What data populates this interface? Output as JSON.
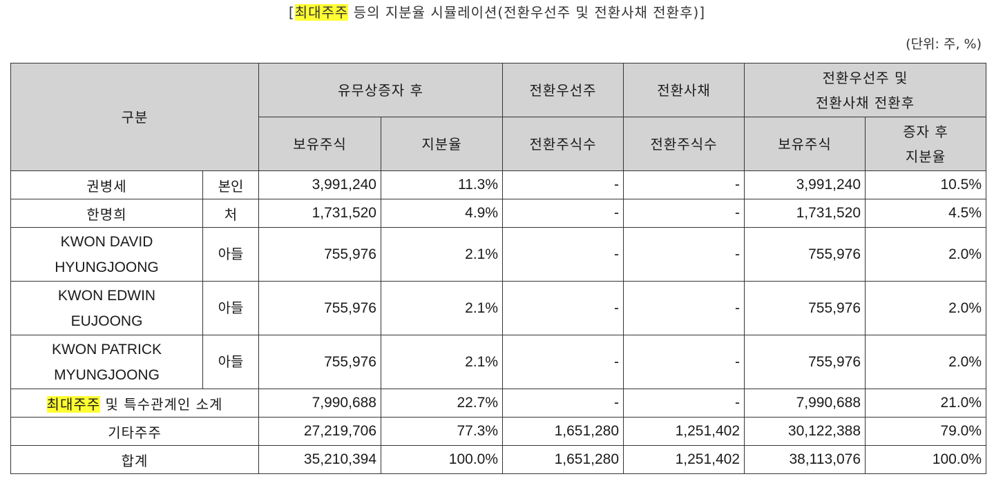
{
  "title": {
    "prefix": "[",
    "highlight": "최대주주",
    "rest": " 등의 지분율 시뮬레이션(전환우선주 및 전환사채 전환후)]"
  },
  "unit": "(단위: 주, %)",
  "header": {
    "category": "구분",
    "after_increase": "유무상증자 후",
    "conv_pref": "전환우선주",
    "conv_bond": "전환사채",
    "after_conversion_line1": "전환우선주 및",
    "after_conversion_line2": "전환사채 전환후",
    "held_shares": "보유주식",
    "share_ratio": "지분율",
    "conv_shares_1": "전환주식수",
    "conv_shares_2": "전환주식수",
    "held_shares_2": "보유주식",
    "ratio_after_line1": "증자 후",
    "ratio_after_line2": "지분율"
  },
  "rows": [
    {
      "name1": "권병세",
      "name2": "",
      "relation": "본인",
      "held": "3,991,240",
      "ratio": "11.3%",
      "pref": "-",
      "bond": "-",
      "held_after": "3,991,240",
      "ratio_after": "10.5%"
    },
    {
      "name1": "한명희",
      "name2": "",
      "relation": "처",
      "held": "1,731,520",
      "ratio": "4.9%",
      "pref": "-",
      "bond": "-",
      "held_after": "1,731,520",
      "ratio_after": "4.5%"
    },
    {
      "name1": "KWON DAVID",
      "name2": "HYUNGJOONG",
      "relation": "아들",
      "held": "755,976",
      "ratio": "2.1%",
      "pref": "-",
      "bond": "-",
      "held_after": "755,976",
      "ratio_after": "2.0%"
    },
    {
      "name1": "KWON EDWIN",
      "name2": "EUJOONG",
      "relation": "아들",
      "held": "755,976",
      "ratio": "2.1%",
      "pref": "-",
      "bond": "-",
      "held_after": "755,976",
      "ratio_after": "2.0%"
    },
    {
      "name1": "KWON PATRICK",
      "name2": "MYUNGJOONG",
      "relation": "아들",
      "held": "755,976",
      "ratio": "2.1%",
      "pref": "-",
      "bond": "-",
      "held_after": "755,976",
      "ratio_after": "2.0%"
    }
  ],
  "subtotal": {
    "highlight": "최대주주",
    "rest": " 및 특수관계인 소계",
    "held": "7,990,688",
    "ratio": "22.7%",
    "pref": "-",
    "bond": "-",
    "held_after": "7,990,688",
    "ratio_after": "21.0%"
  },
  "others": {
    "label": "기타주주",
    "held": "27,219,706",
    "ratio": "77.3%",
    "pref": "1,651,280",
    "bond": "1,251,402",
    "held_after": "30,122,388",
    "ratio_after": "79.0%"
  },
  "total": {
    "label": "합계",
    "held": "35,210,394",
    "ratio": "100.0%",
    "pref": "1,651,280",
    "bond": "1,251,402",
    "held_after": "38,113,076",
    "ratio_after": "100.0%"
  },
  "colors": {
    "header_bg": "#d3d3d3",
    "highlight": "#ffff33",
    "border": "#333333"
  }
}
